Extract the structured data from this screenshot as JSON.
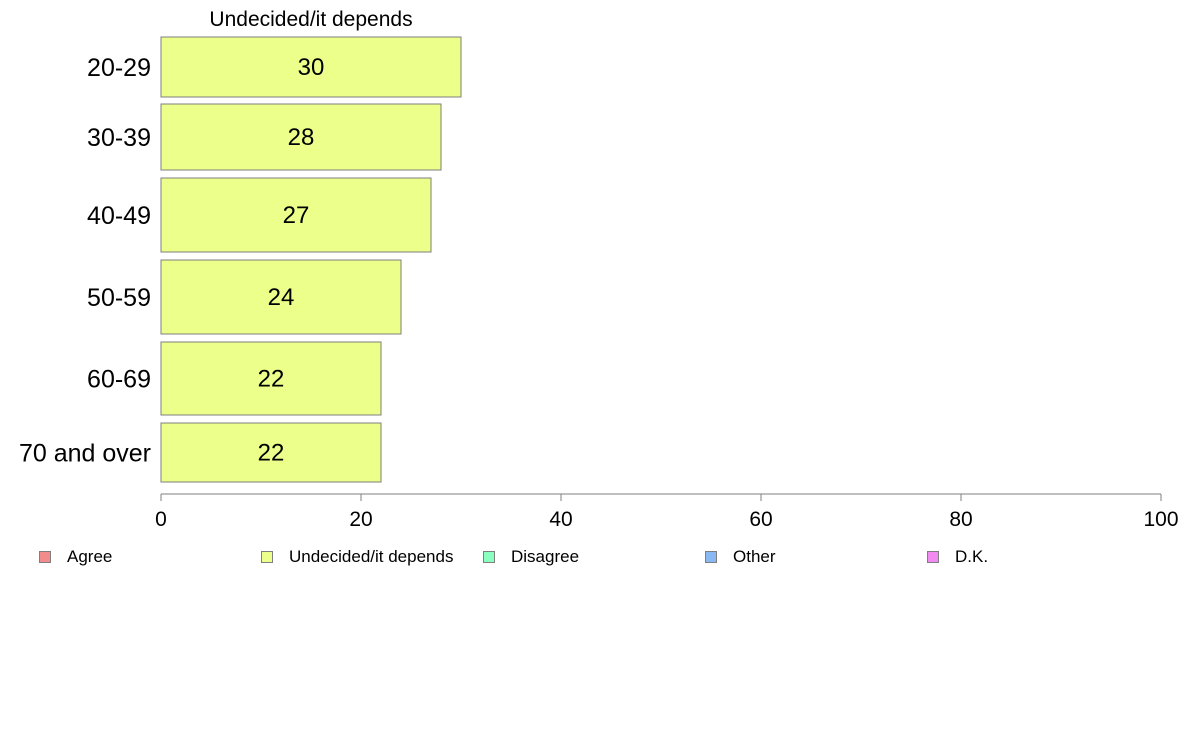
{
  "chart_data": {
    "type": "bar",
    "orientation": "horizontal",
    "title": "Undecided/it depends",
    "categories": [
      "20-29",
      "30-39",
      "40-49",
      "50-59",
      "60-69",
      "70 and over"
    ],
    "series": [
      {
        "name": "Undecided/it depends",
        "values": [
          30,
          28,
          27,
          24,
          22,
          22
        ],
        "labels": [
          "30",
          "28",
          "27",
          "24",
          "22",
          "22"
        ]
      }
    ],
    "xlim": [
      0,
      100
    ],
    "xticks": [
      0,
      20,
      40,
      60,
      80,
      100
    ],
    "tick_labels": [
      "0",
      "20",
      "40",
      "60",
      "80",
      "100"
    ],
    "grid": false,
    "legend_position": "bottom",
    "legend": [
      {
        "label": "Agree",
        "color": "#f28b8b"
      },
      {
        "label": "Undecided/it depends",
        "color": "#ebff8a"
      },
      {
        "label": "Disagree",
        "color": "#8affbf"
      },
      {
        "label": "Other",
        "color": "#8ab8f2"
      },
      {
        "label": "D.K.",
        "color": "#f28af2"
      }
    ],
    "bar_color": "#ebff8a",
    "bar_border_color": "#7f7f7f",
    "axis_color": "#7f7f7f"
  }
}
